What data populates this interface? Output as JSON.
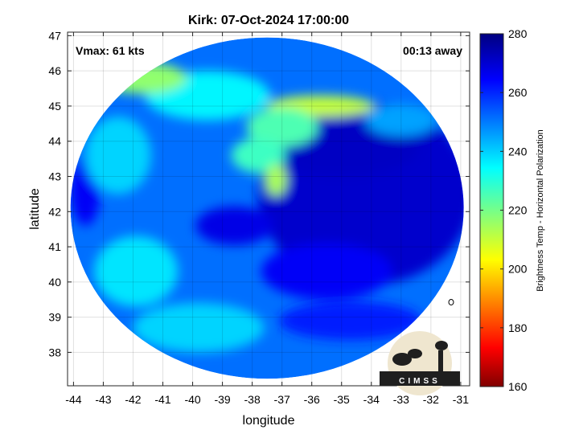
{
  "chart_data": {
    "type": "heatmap",
    "title": "Kirk: 07-Oct-2024 17:00:00",
    "xlabel": "longitude",
    "ylabel": "latitude",
    "xlim": [
      -44.2,
      -30.7
    ],
    "ylim": [
      37.05,
      47.1
    ],
    "xticks": [
      -44,
      -43,
      -42,
      -41,
      -40,
      -39,
      -38,
      -37,
      -36,
      -35,
      -34,
      -33,
      -32,
      -31
    ],
    "yticks": [
      38,
      39,
      40,
      41,
      42,
      43,
      44,
      45,
      46,
      47
    ],
    "grid": true,
    "annotations": {
      "vmax": "Vmax: 61 kts",
      "away": "00:13 away"
    },
    "colorbar": {
      "label": "Brightness Temp - Horizontal Polarization",
      "range": [
        160,
        280
      ],
      "ticks": [
        160,
        180,
        200,
        220,
        240,
        260,
        280
      ],
      "colormap": "jet"
    },
    "swath": {
      "center": [
        -37.5,
        42.1
      ],
      "radius_lon": 6.6,
      "radius_lat": 4.85,
      "background_value": 252
    },
    "features": [
      {
        "lon": -34.2,
        "lat": 42.5,
        "r_lon": 3.6,
        "r_lat": 2.6,
        "value": 271
      },
      {
        "lon": -35.0,
        "lat": 43.8,
        "r_lon": 2.6,
        "r_lat": 0.8,
        "value": 272
      },
      {
        "lon": -38.6,
        "lat": 41.6,
        "r_lon": 1.3,
        "r_lat": 0.55,
        "value": 268
      },
      {
        "lon": -35.5,
        "lat": 40.3,
        "r_lon": 2.2,
        "r_lat": 0.8,
        "value": 266
      },
      {
        "lon": -34.7,
        "lat": 38.9,
        "r_lon": 2.4,
        "r_lat": 0.55,
        "value": 262
      },
      {
        "lon": -43.6,
        "lat": 42.6,
        "r_lon": 0.5,
        "r_lat": 1.0,
        "value": 266
      },
      {
        "lon": -41.9,
        "lat": 40.3,
        "r_lon": 1.4,
        "r_lat": 1.0,
        "value": 238
      },
      {
        "lon": -42.5,
        "lat": 43.6,
        "r_lon": 1.1,
        "r_lat": 1.1,
        "value": 240
      },
      {
        "lon": -39.8,
        "lat": 38.7,
        "r_lon": 2.2,
        "r_lat": 0.7,
        "value": 240
      },
      {
        "lon": -39.5,
        "lat": 45.3,
        "r_lon": 2.1,
        "r_lat": 0.7,
        "value": 236
      },
      {
        "lon": -41.7,
        "lat": 45.8,
        "r_lon": 1.5,
        "r_lat": 0.45,
        "value": 218
      },
      {
        "lon": -35.7,
        "lat": 45.0,
        "r_lon": 1.8,
        "r_lat": 0.3,
        "value": 212
      },
      {
        "lon": -37.0,
        "lat": 44.4,
        "r_lon": 1.2,
        "r_lat": 0.55,
        "value": 226
      },
      {
        "lon": -37.8,
        "lat": 43.6,
        "r_lon": 0.9,
        "r_lat": 0.5,
        "value": 228
      },
      {
        "lon": -37.2,
        "lat": 42.9,
        "r_lon": 0.35,
        "r_lat": 0.45,
        "value": 215
      },
      {
        "lon": -33.0,
        "lat": 44.6,
        "r_lon": 1.2,
        "r_lat": 0.45,
        "value": 246
      }
    ],
    "logo_text": "CIMSS"
  }
}
